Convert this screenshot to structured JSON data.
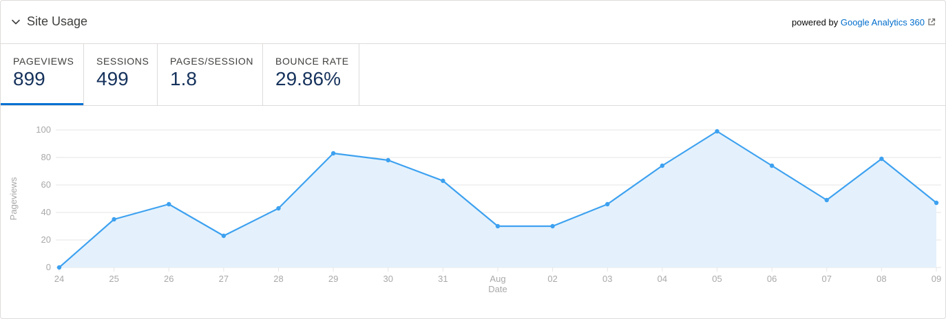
{
  "header": {
    "title": "Site Usage",
    "powered_prefix": "powered by",
    "powered_link": "Google Analytics 360"
  },
  "tabs": [
    {
      "label": "PAGEVIEWS",
      "value": "899",
      "active": true
    },
    {
      "label": "SESSIONS",
      "value": "499",
      "active": false
    },
    {
      "label": "PAGES/SESSION",
      "value": "1.8",
      "active": false
    },
    {
      "label": "BOUNCE RATE",
      "value": "29.86%",
      "active": false
    }
  ],
  "colors": {
    "accent": "#0070d2",
    "link": "#006dcc",
    "line": "#3da1f0",
    "area": "#e4f1fc",
    "grid": "#e5e5e5",
    "axis_text": "#a8a8a8",
    "value_text": "#16325c"
  },
  "icons": {
    "collapse": "chevron-down-icon",
    "external": "external-link-icon"
  },
  "chart_data": {
    "type": "area",
    "categories": [
      "24",
      "25",
      "26",
      "27",
      "28",
      "29",
      "30",
      "31",
      "Aug",
      "02",
      "03",
      "04",
      "05",
      "06",
      "07",
      "08",
      "09"
    ],
    "series": [
      {
        "values": [
          0,
          35,
          46,
          23,
          43,
          83,
          78,
          63,
          30,
          30,
          46,
          74,
          99,
          74,
          49,
          79,
          47
        ]
      }
    ],
    "xlabel": "Date",
    "ylabel": "Pageviews",
    "ylim": [
      0,
      100
    ],
    "yticks": [
      0,
      20,
      40,
      60,
      80,
      100
    ],
    "grid": true,
    "legend": "none"
  }
}
